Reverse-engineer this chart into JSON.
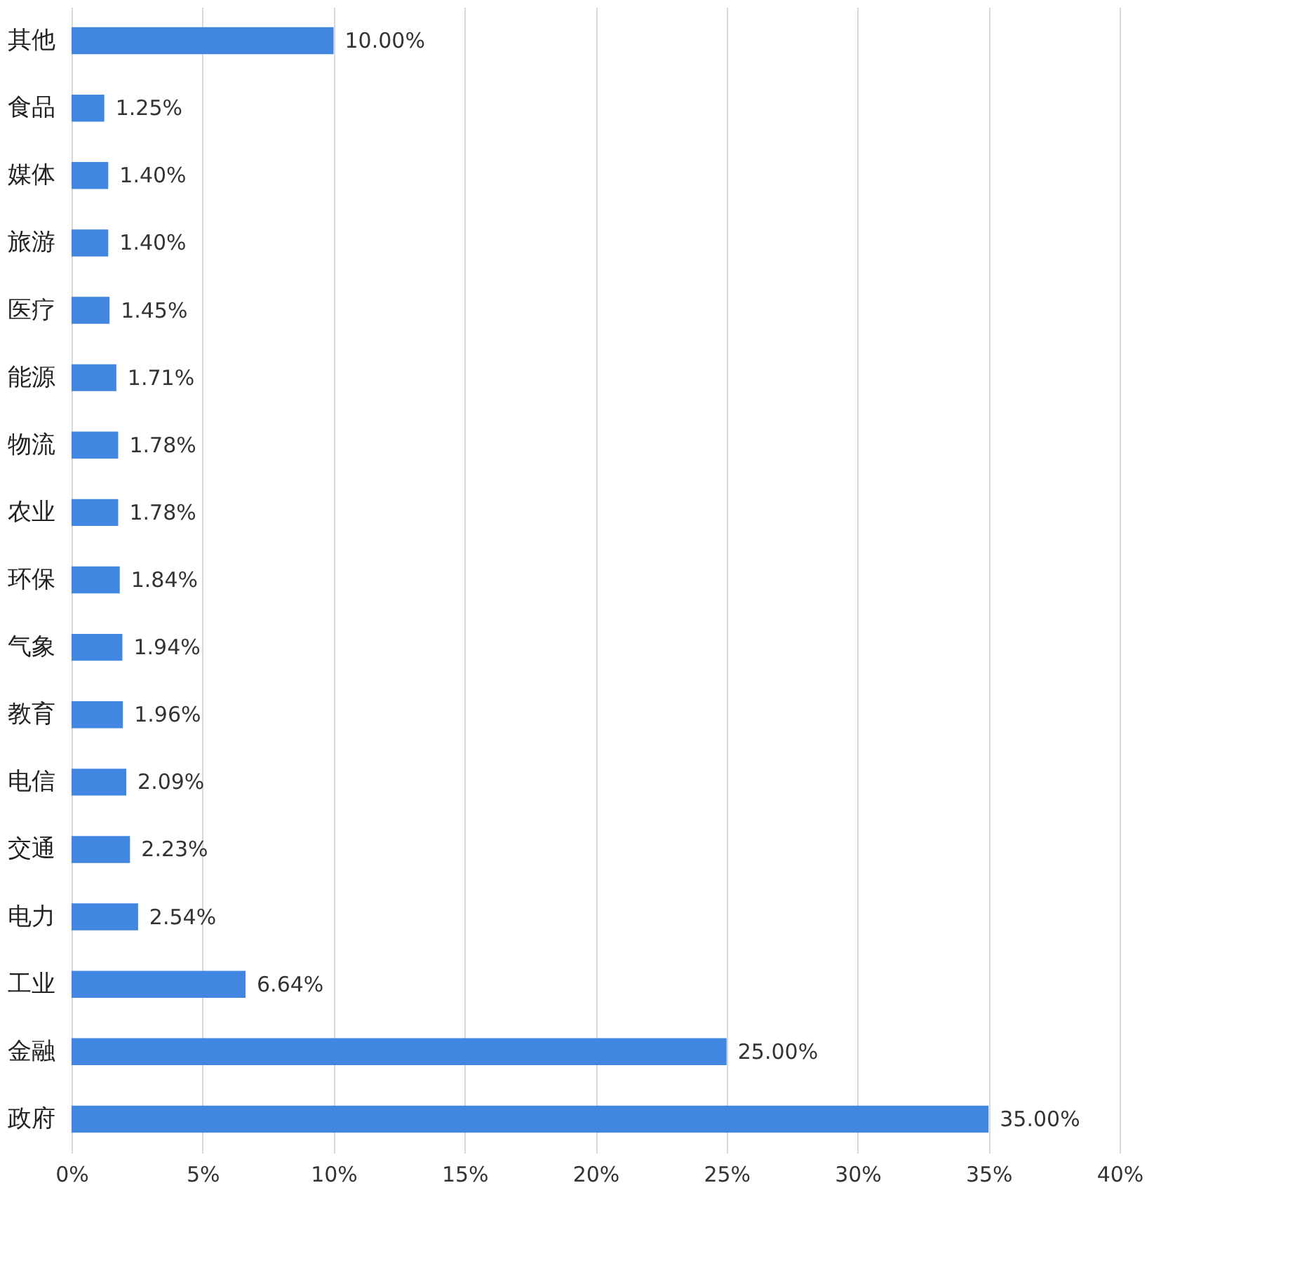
{
  "chart_data": {
    "type": "bar",
    "orientation": "horizontal",
    "categories": [
      "其他",
      "食品",
      "媒体",
      "旅游",
      "医疗",
      "能源",
      "物流",
      "农业",
      "环保",
      "气象",
      "教育",
      "电信",
      "交通",
      "电力",
      "工业",
      "金融",
      "政府"
    ],
    "values": [
      10.0,
      1.25,
      1.4,
      1.4,
      1.45,
      1.71,
      1.78,
      1.78,
      1.84,
      1.94,
      1.96,
      2.09,
      2.23,
      2.54,
      6.64,
      25.0,
      35.0
    ],
    "value_labels": [
      "10.00%",
      "1.25%",
      "1.40%",
      "1.40%",
      "1.45%",
      "1.71%",
      "1.78%",
      "1.78%",
      "1.84%",
      "1.94%",
      "1.96%",
      "2.09%",
      "2.23%",
      "2.54%",
      "6.64%",
      "25.00%",
      "35.00%"
    ],
    "color": "#4186e0",
    "xlim": [
      0,
      40
    ],
    "xticks": [
      {
        "value": 0,
        "label": "0%"
      },
      {
        "value": 5,
        "label": "5%"
      },
      {
        "value": 10,
        "label": "10%"
      },
      {
        "value": 15,
        "label": "15%"
      },
      {
        "value": 20,
        "label": "20%"
      },
      {
        "value": 25,
        "label": "25%"
      },
      {
        "value": 30,
        "label": "30%"
      },
      {
        "value": 35,
        "label": "35%"
      },
      {
        "value": 40,
        "label": "40%"
      }
    ],
    "grid": "x"
  }
}
